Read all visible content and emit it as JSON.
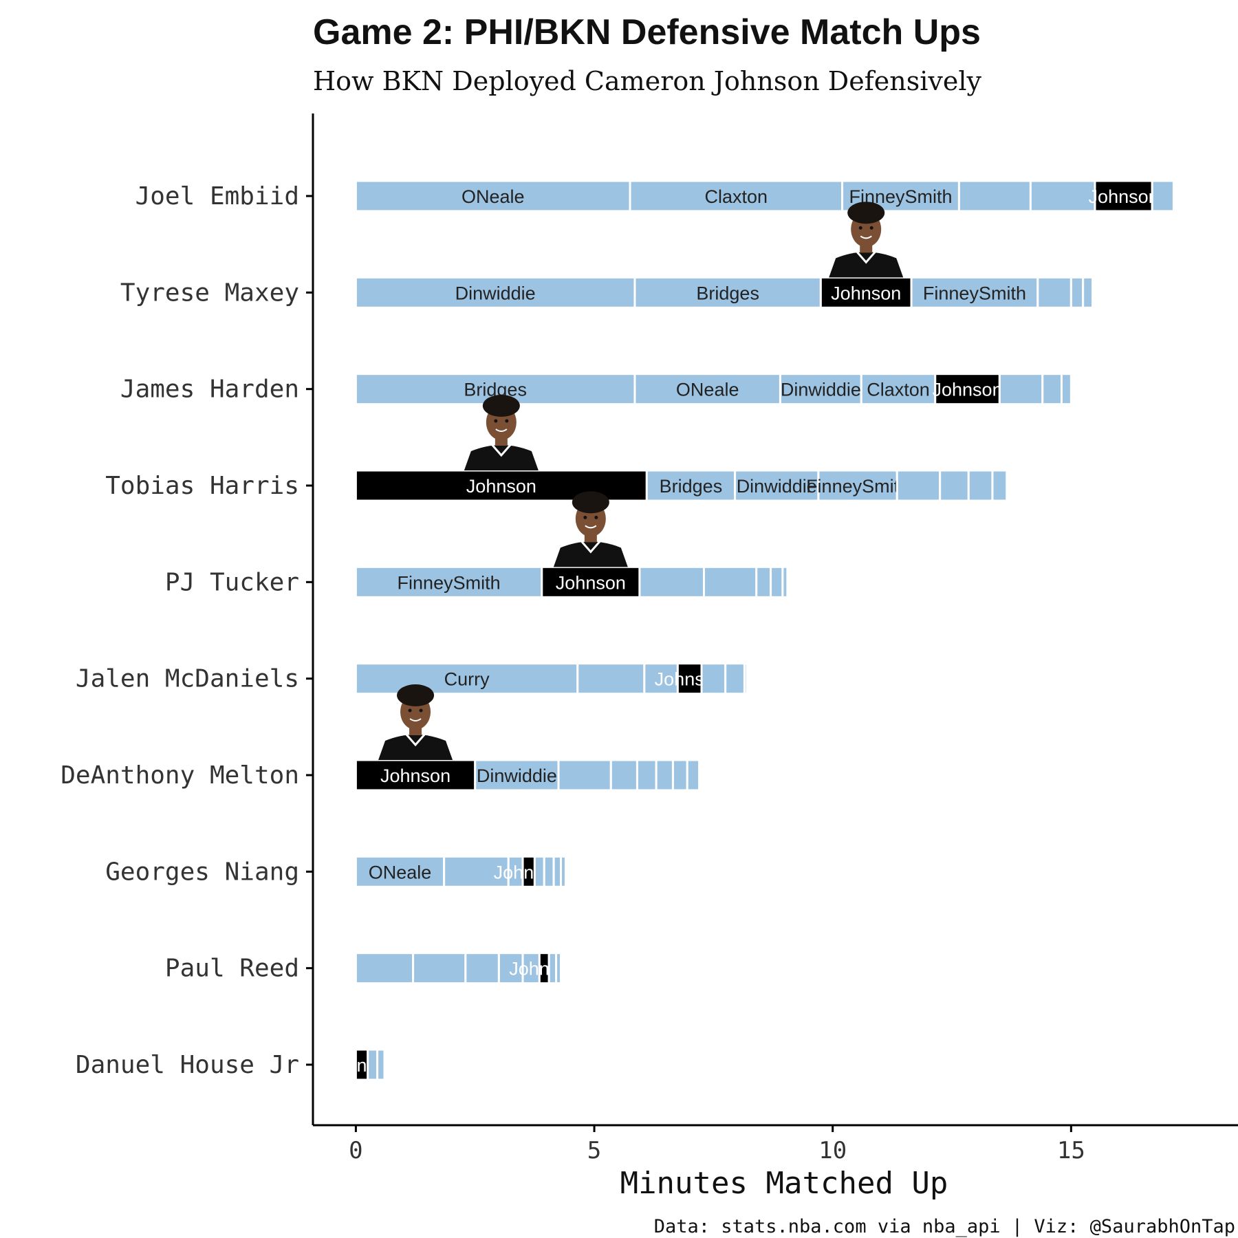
{
  "title": "Game 2: PHI/BKN Defensive Match Ups",
  "subtitle": "How BKN Deployed Cameron Johnson Defensively",
  "caption": "Data: stats.nba.com via nba_api | Viz: @SaurabhOnTap",
  "colors": {
    "other_defender": "#9dc3e2",
    "johnson": "#000000",
    "segment_border": "#ffffff",
    "label_on_light": "#222222",
    "label_on_dark": "#ffffff",
    "axis": "#000000",
    "jersey": "#111111",
    "skin": "#7a4f34",
    "hair": "#1a1410"
  },
  "chart_data": {
    "type": "bar",
    "orientation": "horizontal",
    "stacked": true,
    "xlabel": "Minutes Matched Up",
    "ylabel": "",
    "xlim": [
      -0.9,
      18.5
    ],
    "xticks": [
      0,
      5,
      10,
      15
    ],
    "grid": false,
    "legend": "none",
    "highlight_defender": "Johnson",
    "players": [
      {
        "name": "Joel Embiid",
        "segments": [
          {
            "defender": "ONeale",
            "minutes": 5.75
          },
          {
            "defender": "Claxton",
            "minutes": 4.45
          },
          {
            "defender": "FinneySmith",
            "minutes": 2.45
          },
          {
            "defender": "",
            "minutes": 1.5
          },
          {
            "defender": "",
            "minutes": 1.35
          },
          {
            "defender": "Johnson",
            "minutes": 1.2
          },
          {
            "defender": "",
            "minutes": 0.45
          }
        ]
      },
      {
        "name": "Tyrese Maxey",
        "segments": [
          {
            "defender": "Dinwiddie",
            "minutes": 5.85
          },
          {
            "defender": "Bridges",
            "minutes": 3.9
          },
          {
            "defender": "Johnson",
            "minutes": 1.9
          },
          {
            "defender": "FinneySmith",
            "minutes": 2.65
          },
          {
            "defender": "",
            "minutes": 0.7
          },
          {
            "defender": "",
            "minutes": 0.25
          },
          {
            "defender": "",
            "minutes": 0.2
          }
        ]
      },
      {
        "name": "James Harden",
        "segments": [
          {
            "defender": "Bridges",
            "minutes": 5.85
          },
          {
            "defender": "ONeale",
            "minutes": 3.05
          },
          {
            "defender": "Dinwiddie",
            "minutes": 1.7
          },
          {
            "defender": "Claxton",
            "minutes": 1.55
          },
          {
            "defender": "Johnson",
            "minutes": 1.35
          },
          {
            "defender": "",
            "minutes": 0.9
          },
          {
            "defender": "",
            "minutes": 0.4
          },
          {
            "defender": "",
            "minutes": 0.2
          }
        ]
      },
      {
        "name": "Tobias Harris",
        "segments": [
          {
            "defender": "Johnson",
            "minutes": 6.1
          },
          {
            "defender": "Bridges",
            "minutes": 1.85
          },
          {
            "defender": "Dinwiddie",
            "minutes": 1.75
          },
          {
            "defender": "FinneySmith",
            "minutes": 1.65
          },
          {
            "defender": "",
            "minutes": 0.9
          },
          {
            "defender": "",
            "minutes": 0.6
          },
          {
            "defender": "",
            "minutes": 0.5
          },
          {
            "defender": "",
            "minutes": 0.3
          }
        ]
      },
      {
        "name": "PJ Tucker",
        "segments": [
          {
            "defender": "FinneySmith",
            "minutes": 3.9
          },
          {
            "defender": "Johnson",
            "minutes": 2.05
          },
          {
            "defender": "",
            "minutes": 1.35
          },
          {
            "defender": "",
            "minutes": 1.1
          },
          {
            "defender": "",
            "minutes": 0.3
          },
          {
            "defender": "",
            "minutes": 0.25
          },
          {
            "defender": "",
            "minutes": 0.1
          }
        ]
      },
      {
        "name": "Jalen McDaniels",
        "segments": [
          {
            "defender": "Curry",
            "minutes": 4.65
          },
          {
            "defender": "",
            "minutes": 1.4
          },
          {
            "defender": "",
            "minutes": 0.7
          },
          {
            "defender": "Johnson",
            "minutes": 0.5
          },
          {
            "defender": "",
            "minutes": 0.5
          },
          {
            "defender": "",
            "minutes": 0.4
          },
          {
            "defender": "",
            "minutes": 0.05
          }
        ]
      },
      {
        "name": "DeAnthony Melton",
        "segments": [
          {
            "defender": "Johnson",
            "minutes": 2.5
          },
          {
            "defender": "Dinwiddie",
            "minutes": 1.75
          },
          {
            "defender": "",
            "minutes": 1.1
          },
          {
            "defender": "",
            "minutes": 0.55
          },
          {
            "defender": "",
            "minutes": 0.4
          },
          {
            "defender": "",
            "minutes": 0.35
          },
          {
            "defender": "",
            "minutes": 0.3
          },
          {
            "defender": "",
            "minutes": 0.25
          }
        ]
      },
      {
        "name": "Georges Niang",
        "segments": [
          {
            "defender": "ONeale",
            "minutes": 1.85
          },
          {
            "defender": "",
            "minutes": 1.35
          },
          {
            "defender": "",
            "minutes": 0.3
          },
          {
            "defender": "Johnson",
            "minutes": 0.25
          },
          {
            "defender": "",
            "minutes": 0.2
          },
          {
            "defender": "",
            "minutes": 0.2
          },
          {
            "defender": "",
            "minutes": 0.15
          },
          {
            "defender": "",
            "minutes": 0.1
          }
        ]
      },
      {
        "name": "Paul Reed",
        "segments": [
          {
            "defender": "",
            "minutes": 1.2
          },
          {
            "defender": "",
            "minutes": 1.1
          },
          {
            "defender": "",
            "minutes": 0.7
          },
          {
            "defender": "",
            "minutes": 0.5
          },
          {
            "defender": "",
            "minutes": 0.35
          },
          {
            "defender": "Johnson",
            "minutes": 0.2
          },
          {
            "defender": "",
            "minutes": 0.15
          },
          {
            "defender": "",
            "minutes": 0.1
          }
        ]
      },
      {
        "name": "Danuel House Jr",
        "segments": [
          {
            "defender": "Johnson",
            "minutes": 0.25
          },
          {
            "defender": "",
            "minutes": 0.2
          },
          {
            "defender": "",
            "minutes": 0.15
          }
        ]
      }
    ],
    "headshots": [
      {
        "player": "Tyrese Maxey"
      },
      {
        "player": "Tobias Harris"
      },
      {
        "player": "PJ Tucker"
      },
      {
        "player": "DeAnthony Melton"
      }
    ]
  }
}
